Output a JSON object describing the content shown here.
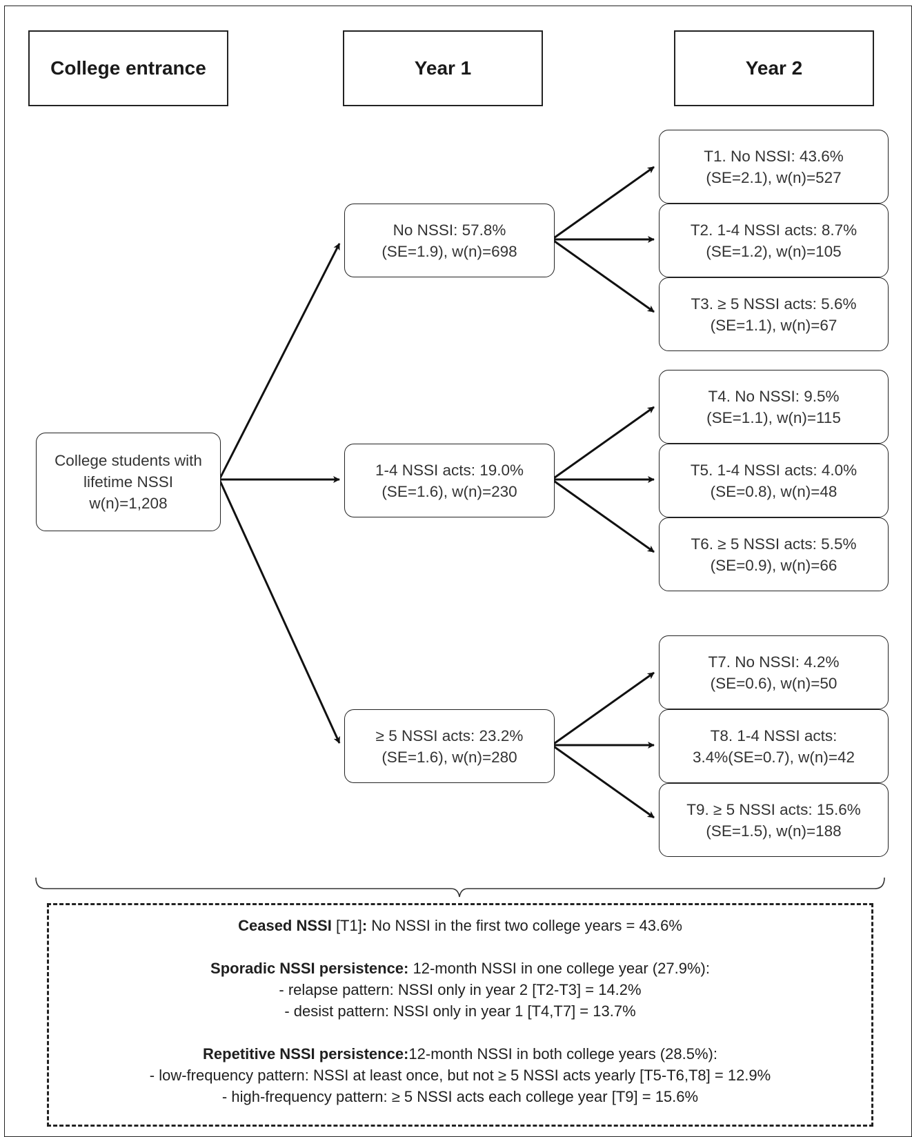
{
  "headers": {
    "entrance": "College entrance",
    "year1": "Year 1",
    "year2": "Year 2"
  },
  "root": {
    "line1": "College students with",
    "line2": "lifetime NSSI",
    "line3": "w(n)=1,208"
  },
  "year1": [
    {
      "line1": "No NSSI: 57.8%",
      "line2": "(SE=1.9), w(n)=698"
    },
    {
      "line1": "1-4 NSSI acts: 19.0%",
      "line2": "(SE=1.6), w(n)=230"
    },
    {
      "line1": "≥ 5 NSSI acts: 23.2%",
      "line2": "(SE=1.6), w(n)=280"
    }
  ],
  "year2": [
    {
      "line1": "T1. No NSSI: 43.6%",
      "line2": "(SE=2.1), w(n)=527"
    },
    {
      "line1": "T2. 1-4 NSSI acts: 8.7%",
      "line2": "(SE=1.2), w(n)=105"
    },
    {
      "line1": "T3. ≥ 5 NSSI acts: 5.6%",
      "line2": "(SE=1.1), w(n)=67"
    },
    {
      "line1": "T4. No NSSI: 9.5%",
      "line2": "(SE=1.1), w(n)=115"
    },
    {
      "line1": "T5. 1-4 NSSI acts: 4.0%",
      "line2": "(SE=0.8), w(n)=48"
    },
    {
      "line1": "T6. ≥ 5 NSSI acts: 5.5%",
      "line2": "(SE=0.9), w(n)=66"
    },
    {
      "line1": "T7. No NSSI: 4.2%",
      "line2": "(SE=0.6), w(n)=50"
    },
    {
      "line1": "T8. 1-4 NSSI acts:",
      "line2": "3.4%(SE=0.7), w(n)=42"
    },
    {
      "line1": "T9.  ≥ 5 NSSI acts: 15.6%",
      "line2": "(SE=1.5), w(n)=188"
    }
  ],
  "summary": {
    "ceased_label": "Ceased NSSI",
    "ceased_ref": " [T1]",
    "ceased_colon": ":",
    "ceased_text": " No NSSI in the first two college years = 43.6%",
    "sporadic_label": "Sporadic NSSI persistence:",
    "sporadic_text": " 12-month NSSI in one college year (27.9%):",
    "relapse": "- relapse pattern: NSSI only in year 2 [T2-T3] = 14.2%",
    "desist": "- desist pattern: NSSI only in year 1 [T4,T7] = 13.7%",
    "repetitive_label": "Repetitive NSSI persistence:",
    "repetitive_text": "12-month NSSI in both college years (28.5%):",
    "low_freq": "- low-frequency pattern: NSSI at least once, but not ≥ 5 NSSI acts yearly [T5-T6,T8] = 12.9%",
    "high_freq": "- high-frequency pattern: ≥ 5 NSSI acts each college year [T9] = 15.6%"
  }
}
